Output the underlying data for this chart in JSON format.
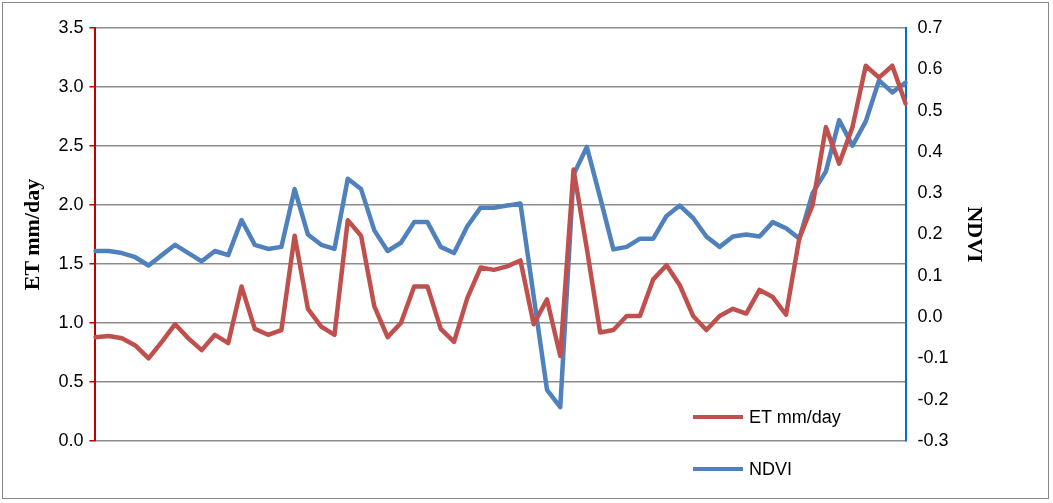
{
  "chart_data": {
    "type": "line",
    "ylabel": "ET mm/day",
    "y2label": "NDVI",
    "categories": [
      null,
      null,
      null,
      null,
      null,
      null,
      null,
      null,
      null,
      null,
      null,
      null,
      null,
      null,
      null,
      null,
      null,
      null,
      null,
      null,
      null,
      null,
      null,
      null,
      null,
      null,
      null,
      null,
      null,
      null,
      null,
      null,
      null,
      null,
      null,
      null,
      null,
      null,
      null,
      null,
      null,
      null,
      null,
      null,
      null,
      null,
      null,
      null,
      null,
      null,
      null,
      null,
      null,
      null,
      null,
      null,
      null,
      null,
      null,
      null,
      null,
      null
    ],
    "series": [
      {
        "name": "ET mm/day",
        "color": "#c0504d",
        "values": [
          0.88,
          0.89,
          0.87,
          0.81,
          0.7,
          0.84,
          0.99,
          0.87,
          0.77,
          0.9,
          0.83,
          1.31,
          0.95,
          0.9,
          0.94,
          1.74,
          1.12,
          0.97,
          0.9,
          1.87,
          1.74,
          1.14,
          0.88,
          1.0,
          1.31,
          1.31,
          0.95,
          0.84,
          1.21,
          1.47,
          1.45,
          1.48,
          1.53,
          0.99,
          1.2,
          0.72,
          2.3,
          1.63,
          0.92,
          0.94,
          1.06,
          1.06,
          1.37,
          1.49,
          1.32,
          1.06,
          0.94,
          1.06,
          1.12,
          1.08,
          1.28,
          1.22,
          1.07,
          1.72,
          2.0,
          2.66,
          2.35,
          2.66,
          3.18,
          3.08,
          3.18,
          2.86
        ]
      },
      {
        "name": "NDVI",
        "color": "#4f81bd",
        "axis": "y2",
        "values": [
          0.16,
          0.16,
          0.155,
          0.145,
          0.125,
          0.15,
          0.175,
          0.155,
          0.135,
          0.16,
          0.15,
          0.235,
          0.175,
          0.165,
          0.17,
          0.31,
          0.2,
          0.175,
          0.165,
          0.335,
          0.31,
          0.21,
          0.16,
          0.18,
          0.23,
          0.23,
          0.17,
          0.155,
          0.22,
          0.265,
          0.265,
          0.27,
          0.275,
          0.05,
          -0.176,
          -0.218,
          0.345,
          0.412,
          0.29,
          0.164,
          0.17,
          0.19,
          0.19,
          0.245,
          0.27,
          0.24,
          0.195,
          0.17,
          0.195,
          0.2,
          0.195,
          0.23,
          0.215,
          0.19,
          0.3,
          0.353,
          0.477,
          0.415,
          0.474,
          0.573,
          0.544,
          0.568
        ]
      }
    ],
    "ylim": [
      0,
      3.5
    ],
    "yticks": [
      {
        "value": 0,
        "label": "0.0"
      },
      {
        "value": 0.5,
        "label": "0.5"
      },
      {
        "value": 1,
        "label": "1.0"
      },
      {
        "value": 1.5,
        "label": "1.5"
      },
      {
        "value": 2,
        "label": "2.0"
      },
      {
        "value": 2.5,
        "label": "2.5"
      },
      {
        "value": 3,
        "label": "3.0"
      },
      {
        "value": 3.5,
        "label": "3.5"
      }
    ],
    "y2lim": [
      -0.3,
      0.7
    ],
    "y2ticks": [
      -0.3,
      -0.2,
      -0.1,
      {
        "value": 0,
        "label": "0.0"
      },
      0.1,
      0.2,
      0.3,
      0.4,
      0.5,
      0.6,
      0.7
    ],
    "grid": "y",
    "legend": "bottom right",
    "tick_labels": "y",
    "marker": "none",
    "line_style": "solid"
  }
}
